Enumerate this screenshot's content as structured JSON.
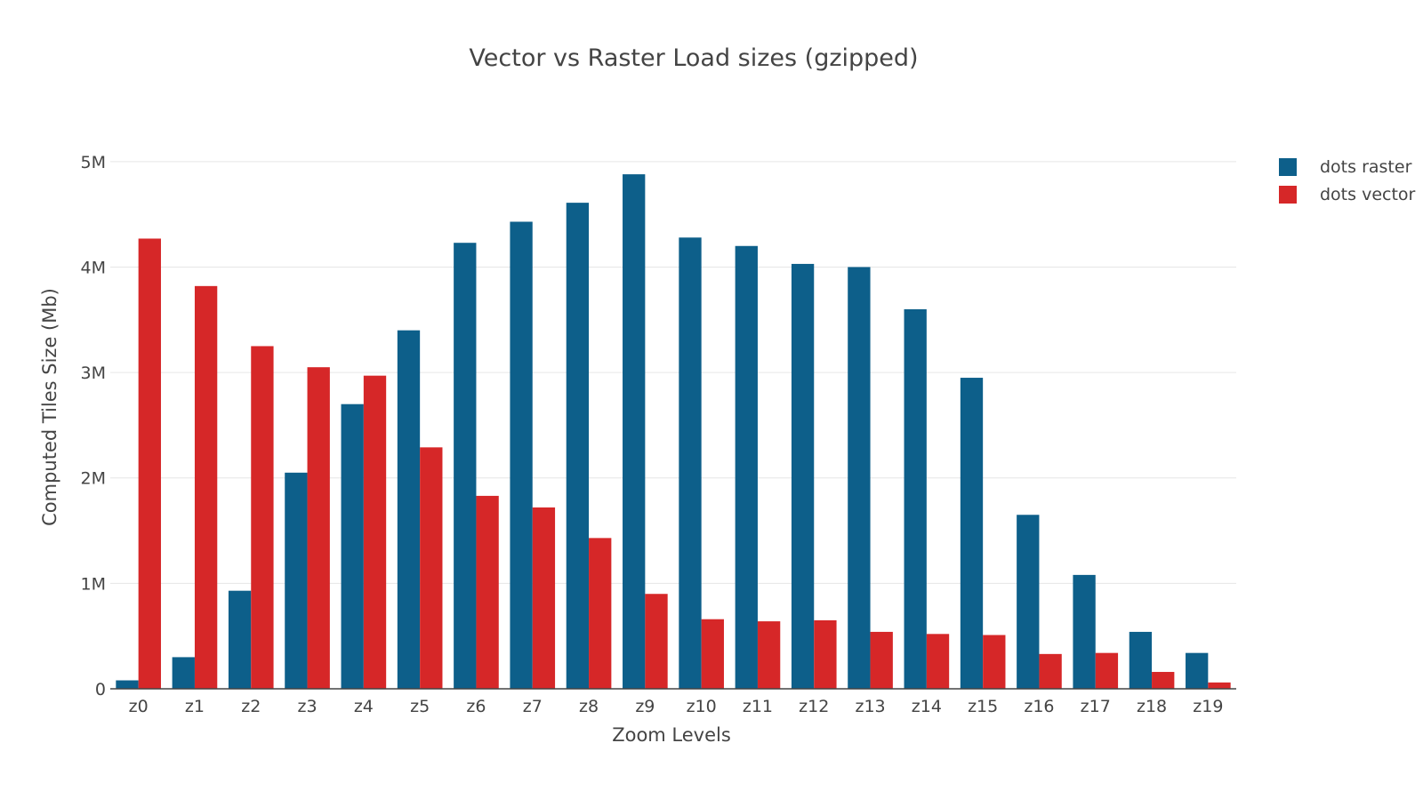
{
  "chart_data": {
    "type": "bar",
    "title": "Vector vs Raster Load sizes (gzipped)",
    "xlabel": "Zoom Levels",
    "ylabel": "Computed Tiles Size (Mb)",
    "categories": [
      "z0",
      "z1",
      "z2",
      "z3",
      "z4",
      "z5",
      "z6",
      "z7",
      "z8",
      "z9",
      "z10",
      "z11",
      "z12",
      "z13",
      "z14",
      "z15",
      "z16",
      "z17",
      "z18",
      "z19"
    ],
    "series": [
      {
        "name": "dots raster",
        "color": "#0d5f8a",
        "values": [
          0.08,
          0.3,
          0.93,
          2.05,
          2.7,
          3.4,
          4.23,
          4.43,
          4.61,
          4.88,
          4.28,
          4.2,
          4.03,
          4.0,
          3.6,
          2.95,
          1.65,
          1.08,
          0.54,
          0.34
        ]
      },
      {
        "name": "dots vector",
        "color": "#d62728",
        "values": [
          4.27,
          3.82,
          3.25,
          3.05,
          2.97,
          2.29,
          1.83,
          1.72,
          1.43,
          0.9,
          0.66,
          0.64,
          0.65,
          0.54,
          0.52,
          0.51,
          0.33,
          0.34,
          0.16,
          0.06
        ]
      }
    ],
    "ylim": [
      0,
      5.1
    ],
    "yticks": [
      0,
      1,
      2,
      3,
      4,
      5
    ],
    "ytick_labels": [
      "0",
      "1M",
      "2M",
      "3M",
      "4M",
      "5M"
    ],
    "grid": true,
    "legend_position": "top-right"
  }
}
